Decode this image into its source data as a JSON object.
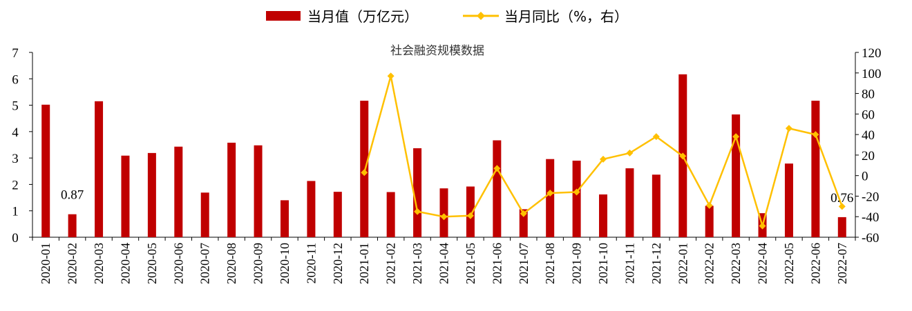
{
  "chart_data": {
    "type": "bar+line",
    "title": "社会融资规模数据",
    "categories": [
      "2020-01",
      "2020-02",
      "2020-03",
      "2020-04",
      "2020-05",
      "2020-06",
      "2020-07",
      "2020-08",
      "2020-09",
      "2020-10",
      "2020-11",
      "2020-12",
      "2021-01",
      "2021-02",
      "2021-03",
      "2021-04",
      "2021-05",
      "2021-06",
      "2021-07",
      "2021-08",
      "2021-09",
      "2021-10",
      "2021-11",
      "2021-12",
      "2022-01",
      "2022-02",
      "2022-03",
      "2022-04",
      "2022-05",
      "2022-06",
      "2022-07"
    ],
    "series": [
      {
        "name": "当月值（万亿元）",
        "type": "bar",
        "axis": "left",
        "color": "#c00000",
        "values": [
          5.02,
          0.87,
          5.15,
          3.09,
          3.19,
          3.43,
          1.69,
          3.58,
          3.48,
          1.4,
          2.13,
          1.72,
          5.17,
          1.71,
          3.37,
          1.85,
          1.92,
          3.67,
          1.06,
          2.96,
          2.9,
          1.62,
          2.61,
          2.37,
          6.17,
          1.19,
          4.65,
          0.91,
          2.79,
          5.17,
          0.76
        ]
      },
      {
        "name": "当月同比（%，右）",
        "type": "line",
        "axis": "right",
        "color": "#ffc000",
        "values": [
          null,
          null,
          null,
          null,
          null,
          null,
          null,
          null,
          null,
          null,
          null,
          null,
          3,
          97,
          -35,
          -40,
          -39,
          7,
          -37,
          -17,
          -16,
          16,
          22,
          38,
          19,
          -29,
          38,
          -49,
          46,
          40,
          -30
        ]
      }
    ],
    "y_left": {
      "min": 0,
      "max": 7,
      "ticks": [
        0,
        1,
        2,
        3,
        4,
        5,
        6,
        7
      ]
    },
    "y_right": {
      "min": -60,
      "max": 120,
      "ticks": [
        -60,
        -40,
        -20,
        0,
        20,
        40,
        60,
        80,
        100,
        120
      ]
    },
    "data_labels": [
      {
        "category": "2020-02",
        "text": "0.87"
      },
      {
        "category": "2022-07",
        "text": "0.76"
      }
    ],
    "legend": {
      "placement": "top-center"
    },
    "grid": false
  }
}
